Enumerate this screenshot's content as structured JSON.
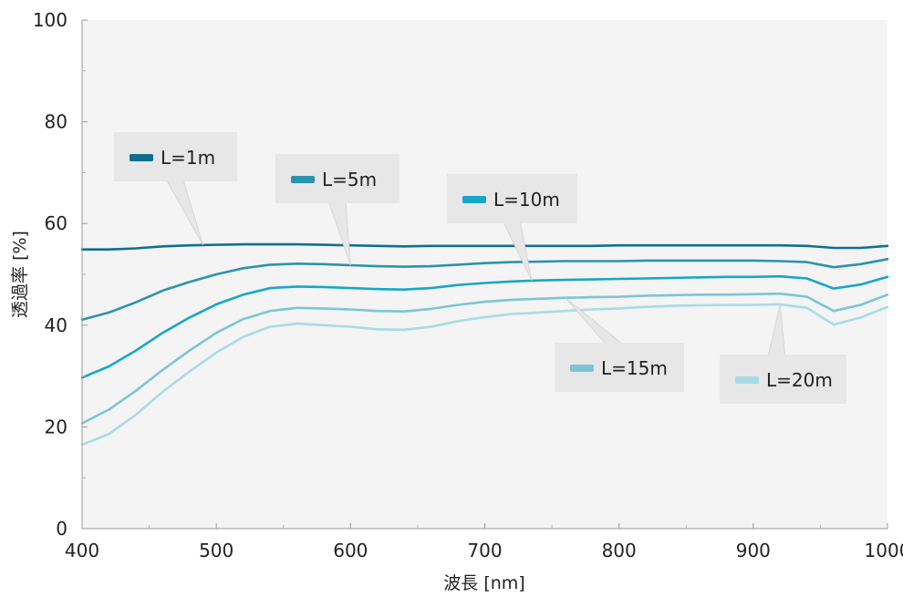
{
  "chart_data": {
    "type": "line",
    "xlabel": "波長 [nm]",
    "ylabel": "透過率 [%]",
    "xlim": [
      400,
      1000
    ],
    "ylim": [
      0,
      100
    ],
    "x_ticks": [
      "400",
      "500",
      "600",
      "700",
      "800",
      "900",
      "1000"
    ],
    "y_ticks": [
      "0",
      "20",
      "40",
      "60",
      "80",
      "100"
    ],
    "grid": false,
    "x": [
      400,
      420,
      440,
      460,
      480,
      500,
      520,
      540,
      560,
      580,
      600,
      620,
      640,
      660,
      680,
      700,
      720,
      740,
      760,
      780,
      800,
      820,
      840,
      860,
      880,
      900,
      920,
      940,
      960,
      980,
      1000
    ],
    "series": [
      {
        "name": "L=1m",
        "color": "#0f6f93",
        "values": [
          54.9,
          54.9,
          55.1,
          55.5,
          55.7,
          55.8,
          55.9,
          55.9,
          55.9,
          55.8,
          55.7,
          55.6,
          55.5,
          55.6,
          55.6,
          55.6,
          55.6,
          55.6,
          55.6,
          55.6,
          55.7,
          55.7,
          55.7,
          55.7,
          55.7,
          55.7,
          55.7,
          55.6,
          55.2,
          55.2,
          55.6
        ]
      },
      {
        "name": "L=5m",
        "color": "#2b93ad",
        "values": [
          41.1,
          42.5,
          44.5,
          46.8,
          48.5,
          50.0,
          51.2,
          51.9,
          52.1,
          52.0,
          51.8,
          51.6,
          51.5,
          51.6,
          51.9,
          52.2,
          52.4,
          52.5,
          52.6,
          52.6,
          52.6,
          52.7,
          52.7,
          52.7,
          52.7,
          52.7,
          52.6,
          52.4,
          51.4,
          52.0,
          53.0
        ]
      },
      {
        "name": "L=10m",
        "color": "#17a6c8",
        "values": [
          29.7,
          31.9,
          35.0,
          38.5,
          41.5,
          44.1,
          46.0,
          47.3,
          47.6,
          47.5,
          47.3,
          47.1,
          47.0,
          47.3,
          47.9,
          48.3,
          48.6,
          48.8,
          48.9,
          49.0,
          49.1,
          49.2,
          49.3,
          49.4,
          49.5,
          49.5,
          49.6,
          49.2,
          47.2,
          48.0,
          49.5
        ]
      },
      {
        "name": "L=15m",
        "color": "#7cc5d6",
        "values": [
          20.7,
          23.4,
          27.1,
          31.2,
          35.0,
          38.5,
          41.2,
          42.8,
          43.4,
          43.3,
          43.1,
          42.8,
          42.7,
          43.2,
          44.0,
          44.6,
          45.0,
          45.2,
          45.4,
          45.5,
          45.6,
          45.8,
          45.9,
          46.0,
          46.0,
          46.1,
          46.2,
          45.6,
          42.8,
          44.0,
          46.0
        ]
      },
      {
        "name": "L=20m",
        "color": "#a9dbe5",
        "values": [
          16.5,
          18.6,
          22.4,
          26.9,
          30.9,
          34.6,
          37.7,
          39.7,
          40.3,
          40.0,
          39.7,
          39.2,
          39.1,
          39.7,
          40.8,
          41.6,
          42.2,
          42.5,
          42.8,
          43.1,
          43.3,
          43.6,
          43.8,
          43.9,
          44.0,
          44.0,
          44.1,
          43.4,
          40.1,
          41.5,
          43.6
        ]
      }
    ],
    "legend": "callouts on plot"
  }
}
